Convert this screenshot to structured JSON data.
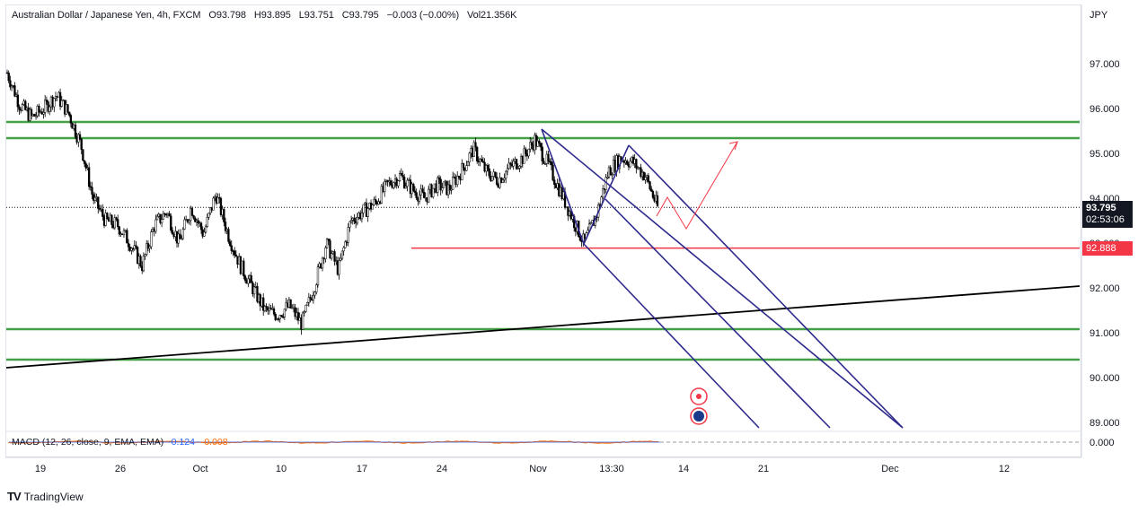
{
  "header": {
    "symbol": "Australian Dollar / Japanese Yen, 4h, FXCM",
    "open": "O93.798",
    "high": "H93.895",
    "low": "L93.751",
    "close": "C93.795",
    "change": "−0.003 (−0.00%)",
    "volume": "Vol21.356K"
  },
  "price_scale": {
    "currency": "JPY",
    "current_price": "93.795",
    "countdown": "02:53:06",
    "level_label": "92.888",
    "hidden_label": "93.000"
  },
  "macd": {
    "label": "MACD (12, 26, close, 9, EMA, EMA)",
    "value_macd": "-0.124",
    "value_signal": "-0.008",
    "zero_label": "0.000"
  },
  "footer": {
    "brand": "TradingView"
  },
  "colors": {
    "support_resistance": "#43a047",
    "red_level": "#f23645",
    "channel": "#2e2a8c",
    "projection": "#f23645",
    "trendline": "#000000",
    "candle": "#000000",
    "macd_line": "#2962ff",
    "signal_line": "#ff6d00"
  },
  "chart_data": {
    "type": "candlestick",
    "title": "Australian Dollar / Japanese Yen, 4h, FXCM",
    "ylabel": "JPY",
    "ylim": [
      88.6,
      98.1
    ],
    "y_ticks": [
      97,
      96,
      95,
      94,
      92,
      91,
      90,
      89
    ],
    "y_tick_labels": [
      "97.000",
      "96.000",
      "95.000",
      "94.000",
      "92.000",
      "91.000",
      "90.000",
      "89.000"
    ],
    "x_ticks": [
      "19",
      "26",
      "Oct",
      "10",
      "17",
      "24",
      "Nov",
      "13:30",
      "14",
      "21",
      "Dec",
      "12"
    ],
    "price_path": [
      {
        "t": "Sep 16",
        "p": 96.8
      },
      {
        "t": "Sep 17",
        "p": 96.1
      },
      {
        "t": "Sep 18",
        "p": 95.8
      },
      {
        "t": "Sep 20",
        "p": 96.0
      },
      {
        "t": "Sep 21",
        "p": 96.3
      },
      {
        "t": "Sep 22",
        "p": 95.9
      },
      {
        "t": "Sep 23",
        "p": 95.2
      },
      {
        "t": "Sep 24",
        "p": 94.0
      },
      {
        "t": "Sep 25",
        "p": 93.5
      },
      {
        "t": "Sep 27",
        "p": 93.4
      },
      {
        "t": "Sep 28",
        "p": 93.0
      },
      {
        "t": "Sep 30",
        "p": 92.5
      },
      {
        "t": "Oct 1",
        "p": 93.4
      },
      {
        "t": "Oct 2",
        "p": 93.7
      },
      {
        "t": "Oct 3",
        "p": 93.0
      },
      {
        "t": "Oct 4",
        "p": 93.8
      },
      {
        "t": "Oct 5",
        "p": 93.2
      },
      {
        "t": "Oct 6",
        "p": 94.1
      },
      {
        "t": "Oct 7",
        "p": 93.2
      },
      {
        "t": "Oct 8",
        "p": 92.5
      },
      {
        "t": "Oct 9",
        "p": 92.0
      },
      {
        "t": "Oct 10",
        "p": 91.5
      },
      {
        "t": "Oct 11",
        "p": 91.4
      },
      {
        "t": "Oct 12",
        "p": 91.6
      },
      {
        "t": "Oct 13",
        "p": 91.2
      },
      {
        "t": "Oct 14",
        "p": 92.0
      },
      {
        "t": "Oct 15",
        "p": 93.0
      },
      {
        "t": "Oct 16",
        "p": 92.4
      },
      {
        "t": "Oct 17",
        "p": 93.5
      },
      {
        "t": "Oct 18",
        "p": 93.7
      },
      {
        "t": "Oct 19",
        "p": 93.9
      },
      {
        "t": "Oct 20",
        "p": 94.3
      },
      {
        "t": "Oct 21",
        "p": 94.5
      },
      {
        "t": "Oct 22",
        "p": 94.2
      },
      {
        "t": "Oct 23",
        "p": 94.0
      },
      {
        "t": "Oct 24",
        "p": 94.3
      },
      {
        "t": "Oct 25",
        "p": 94.2
      },
      {
        "t": "Oct 26",
        "p": 94.6
      },
      {
        "t": "Oct 27",
        "p": 95.1
      },
      {
        "t": "Oct 28",
        "p": 94.6
      },
      {
        "t": "Oct 29",
        "p": 94.4
      },
      {
        "t": "Oct 30",
        "p": 94.7
      },
      {
        "t": "Oct 31",
        "p": 94.9
      },
      {
        "t": "Nov 1",
        "p": 95.3
      },
      {
        "t": "Nov 2",
        "p": 94.8
      },
      {
        "t": "Nov 3",
        "p": 94.2
      },
      {
        "t": "Nov 4",
        "p": 93.6
      },
      {
        "t": "Nov 5",
        "p": 93.0
      },
      {
        "t": "Nov 6",
        "p": 93.6
      },
      {
        "t": "Nov 7",
        "p": 94.6
      },
      {
        "t": "Nov 8",
        "p": 94.9
      },
      {
        "t": "Nov 9",
        "p": 94.8
      },
      {
        "t": "Nov 10",
        "p": 94.5
      },
      {
        "t": "Nov 11",
        "p": 93.8
      }
    ],
    "horizontal_levels": [
      95.7,
      95.34,
      91.08,
      90.4
    ],
    "red_level": 92.888,
    "last_price": 93.795
  }
}
